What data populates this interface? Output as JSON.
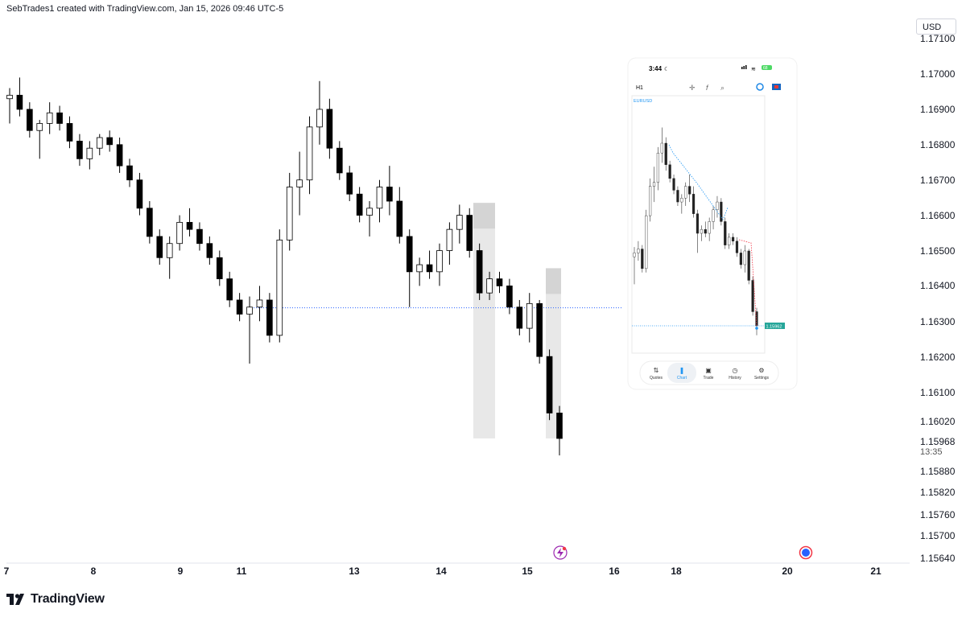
{
  "header": {
    "attribution": "SebTrades1 created with TradingView.com, Jan 15, 2026 09:46 UTC-5"
  },
  "currency": "USD",
  "footer": {
    "brand": "TradingView"
  },
  "price_axis": {
    "last_price": "1.15968",
    "countdown": "13:35"
  },
  "phone": {
    "status_time": "3:44",
    "battery": "68",
    "timeframe": "H1",
    "symbol": "EURUSD",
    "current_price_label": "1.15962",
    "nav": [
      {
        "label": "Quotes"
      },
      {
        "label": "Chart"
      },
      {
        "label": "Trade"
      },
      {
        "label": "History"
      },
      {
        "label": "Settings"
      }
    ]
  },
  "colors": {
    "bull": "#ffffff",
    "bear": "#000000",
    "reference_line": "#2962ff",
    "zone": "#e8e8e8",
    "zone_dark": "#d4d4d4",
    "phone_accent": "#2196f3",
    "phone_price_badge": "#26a69a"
  },
  "chart_data": {
    "type": "candlestick",
    "instrument": "EURUSD",
    "timeframe": "H1",
    "x_tick_labels": [
      "7",
      "8",
      "9",
      "11",
      "13",
      "14",
      "15",
      "16",
      "18",
      "20",
      "21"
    ],
    "y_tick_labels": [
      "1.17100",
      "1.17000",
      "1.16900",
      "1.16800",
      "1.16700",
      "1.16600",
      "1.16500",
      "1.16400",
      "1.16300",
      "1.16200",
      "1.16100",
      "1.16020",
      "1.15880",
      "1.15820",
      "1.15760",
      "1.15700",
      "1.15640"
    ],
    "last_price": 1.15968,
    "reference_level": 1.16338,
    "zones": [
      {
        "start_day": "14",
        "top": 1.16635,
        "bottom": 1.15968
      },
      {
        "start_day": "15",
        "top": 1.1645,
        "bottom": 1.15968
      }
    ],
    "candles_ohlc": [
      [
        1.1693,
        1.1696,
        1.1686,
        1.1694
      ],
      [
        1.1694,
        1.1699,
        1.1688,
        1.169
      ],
      [
        1.169,
        1.1692,
        1.1682,
        1.1684
      ],
      [
        1.1684,
        1.1687,
        1.1676,
        1.1686
      ],
      [
        1.1686,
        1.1692,
        1.1683,
        1.1689
      ],
      [
        1.1689,
        1.1691,
        1.1684,
        1.1686
      ],
      [
        1.1686,
        1.1688,
        1.1679,
        1.1681
      ],
      [
        1.1681,
        1.1683,
        1.1674,
        1.1676
      ],
      [
        1.1676,
        1.1681,
        1.1673,
        1.1679
      ],
      [
        1.1679,
        1.1683,
        1.1677,
        1.1682
      ],
      [
        1.1682,
        1.1684,
        1.1678,
        1.168
      ],
      [
        1.168,
        1.1682,
        1.1672,
        1.1674
      ],
      [
        1.1674,
        1.1676,
        1.1668,
        1.167
      ],
      [
        1.167,
        1.1672,
        1.166,
        1.1662
      ],
      [
        1.1662,
        1.1664,
        1.1652,
        1.1654
      ],
      [
        1.1654,
        1.1656,
        1.1646,
        1.1648
      ],
      [
        1.1648,
        1.1654,
        1.1642,
        1.1652
      ],
      [
        1.1652,
        1.166,
        1.165,
        1.1658
      ],
      [
        1.1658,
        1.1662,
        1.1654,
        1.1656
      ],
      [
        1.1656,
        1.1658,
        1.165,
        1.1652
      ],
      [
        1.1652,
        1.1654,
        1.1646,
        1.1648
      ],
      [
        1.1648,
        1.165,
        1.164,
        1.1642
      ],
      [
        1.1642,
        1.1644,
        1.1634,
        1.1636
      ],
      [
        1.1636,
        1.1638,
        1.163,
        1.1632
      ],
      [
        1.1632,
        1.1637,
        1.1618,
        1.1634
      ],
      [
        1.1634,
        1.164,
        1.163,
        1.1636
      ],
      [
        1.1636,
        1.1638,
        1.1624,
        1.1626
      ],
      [
        1.1626,
        1.1656,
        1.1624,
        1.1653
      ],
      [
        1.1653,
        1.1672,
        1.165,
        1.1668
      ],
      [
        1.1668,
        1.1678,
        1.166,
        1.167
      ],
      [
        1.167,
        1.1688,
        1.1666,
        1.1685
      ],
      [
        1.1685,
        1.1698,
        1.168,
        1.169
      ],
      [
        1.169,
        1.1693,
        1.1676,
        1.1679
      ],
      [
        1.1679,
        1.1681,
        1.167,
        1.1672
      ],
      [
        1.1672,
        1.1674,
        1.1664,
        1.1666
      ],
      [
        1.1666,
        1.1668,
        1.1658,
        1.166
      ],
      [
        1.166,
        1.1664,
        1.1654,
        1.1662
      ],
      [
        1.1662,
        1.167,
        1.1658,
        1.1668
      ],
      [
        1.1668,
        1.1674,
        1.166,
        1.1664
      ],
      [
        1.1664,
        1.1668,
        1.1652,
        1.1654
      ],
      [
        1.1654,
        1.1656,
        1.1634,
        1.1644
      ],
      [
        1.1644,
        1.1648,
        1.164,
        1.1646
      ],
      [
        1.1646,
        1.165,
        1.1642,
        1.1644
      ],
      [
        1.1644,
        1.1652,
        1.164,
        1.165
      ],
      [
        1.165,
        1.1658,
        1.1646,
        1.1656
      ],
      [
        1.1656,
        1.1663,
        1.1652,
        1.166
      ],
      [
        1.166,
        1.1662,
        1.1648,
        1.165
      ],
      [
        1.165,
        1.1652,
        1.1636,
        1.1638
      ],
      [
        1.1638,
        1.1644,
        1.1636,
        1.1642
      ],
      [
        1.1642,
        1.1644,
        1.1638,
        1.164
      ],
      [
        1.164,
        1.1642,
        1.1632,
        1.1634
      ],
      [
        1.1634,
        1.1636,
        1.1626,
        1.1628
      ],
      [
        1.1628,
        1.1638,
        1.1624,
        1.1635
      ],
      [
        1.1635,
        1.1636,
        1.1618,
        1.162
      ],
      [
        1.162,
        1.1622,
        1.1602,
        1.1604
      ],
      [
        1.1604,
        1.1606,
        1.1592,
        1.15968
      ]
    ]
  }
}
